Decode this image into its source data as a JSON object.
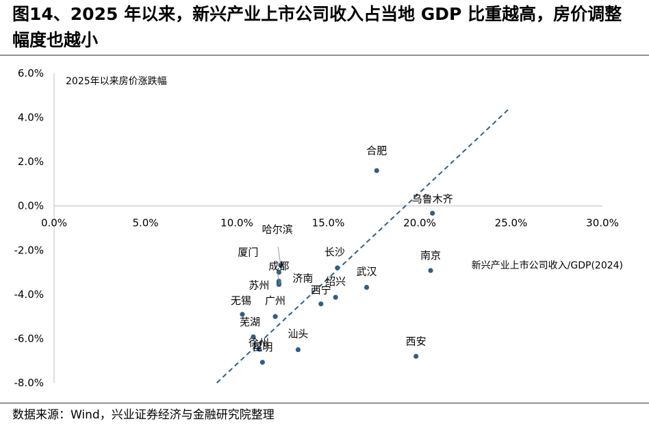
{
  "header": {
    "title": "图14、2025 年以来，新兴产业上市公司收入占当地 GDP 比重越高，房价调整幅度也越小"
  },
  "footer": {
    "source": "数据来源：Wind，兴业证券经济与金融研究院整理"
  },
  "colors": {
    "point": "#2E5F86",
    "trendline": "#2E5F86",
    "axis": "#BFBFBF",
    "text": "#000000"
  },
  "chart_data": {
    "type": "scatter",
    "title": "",
    "xlabel": "新兴产业上市公司收入/GDP(2024)",
    "ylabel": "2025年以来房价涨跌幅",
    "xlim": [
      0,
      0.3
    ],
    "ylim": [
      -0.08,
      0.06
    ],
    "x_ticks": [
      "0.0%",
      "5.0%",
      "10.0%",
      "15.0%",
      "20.0%",
      "25.0%",
      "30.0%"
    ],
    "y_ticks": [
      "6.0%",
      "4.0%",
      "2.0%",
      "0.0%",
      "-2.0%",
      "-4.0%",
      "-6.0%",
      "-8.0%"
    ],
    "grid": false,
    "trendline": {
      "style": "dashed",
      "from": [
        0.089,
        -0.08
      ],
      "to": [
        0.249,
        0.044
      ]
    },
    "points": [
      {
        "name": "合肥",
        "x": 0.1765,
        "y": 0.016
      },
      {
        "name": "乌鲁木齐",
        "x": 0.207,
        "y": -0.0033
      },
      {
        "name": "哈尔滨",
        "x": 0.124,
        "y": -0.0268
      },
      {
        "name": "厦门",
        "x": 0.123,
        "y": -0.03
      },
      {
        "name": "成都",
        "x": 0.123,
        "y": -0.034
      },
      {
        "name": "苏州",
        "x": 0.123,
        "y": -0.035
      },
      {
        "name": "济南",
        "x": 0.123,
        "y": -0.0355
      },
      {
        "name": "长沙",
        "x": 0.155,
        "y": -0.028
      },
      {
        "name": "南京",
        "x": 0.206,
        "y": -0.0292
      },
      {
        "name": "武汉",
        "x": 0.171,
        "y": -0.0368
      },
      {
        "name": "绍兴",
        "x": 0.154,
        "y": -0.0413
      },
      {
        "name": "西宁",
        "x": 0.146,
        "y": -0.0443
      },
      {
        "name": "无锡",
        "x": 0.103,
        "y": -0.049
      },
      {
        "name": "广州",
        "x": 0.121,
        "y": -0.05
      },
      {
        "name": "芜湖",
        "x": 0.109,
        "y": -0.0592
      },
      {
        "name": "徐州",
        "x": 0.112,
        "y": -0.0647
      },
      {
        "name": "汕头",
        "x": 0.1335,
        "y": -0.065
      },
      {
        "name": "昆明",
        "x": 0.114,
        "y": -0.0707
      },
      {
        "name": "西安",
        "x": 0.198,
        "y": -0.068
      }
    ]
  }
}
